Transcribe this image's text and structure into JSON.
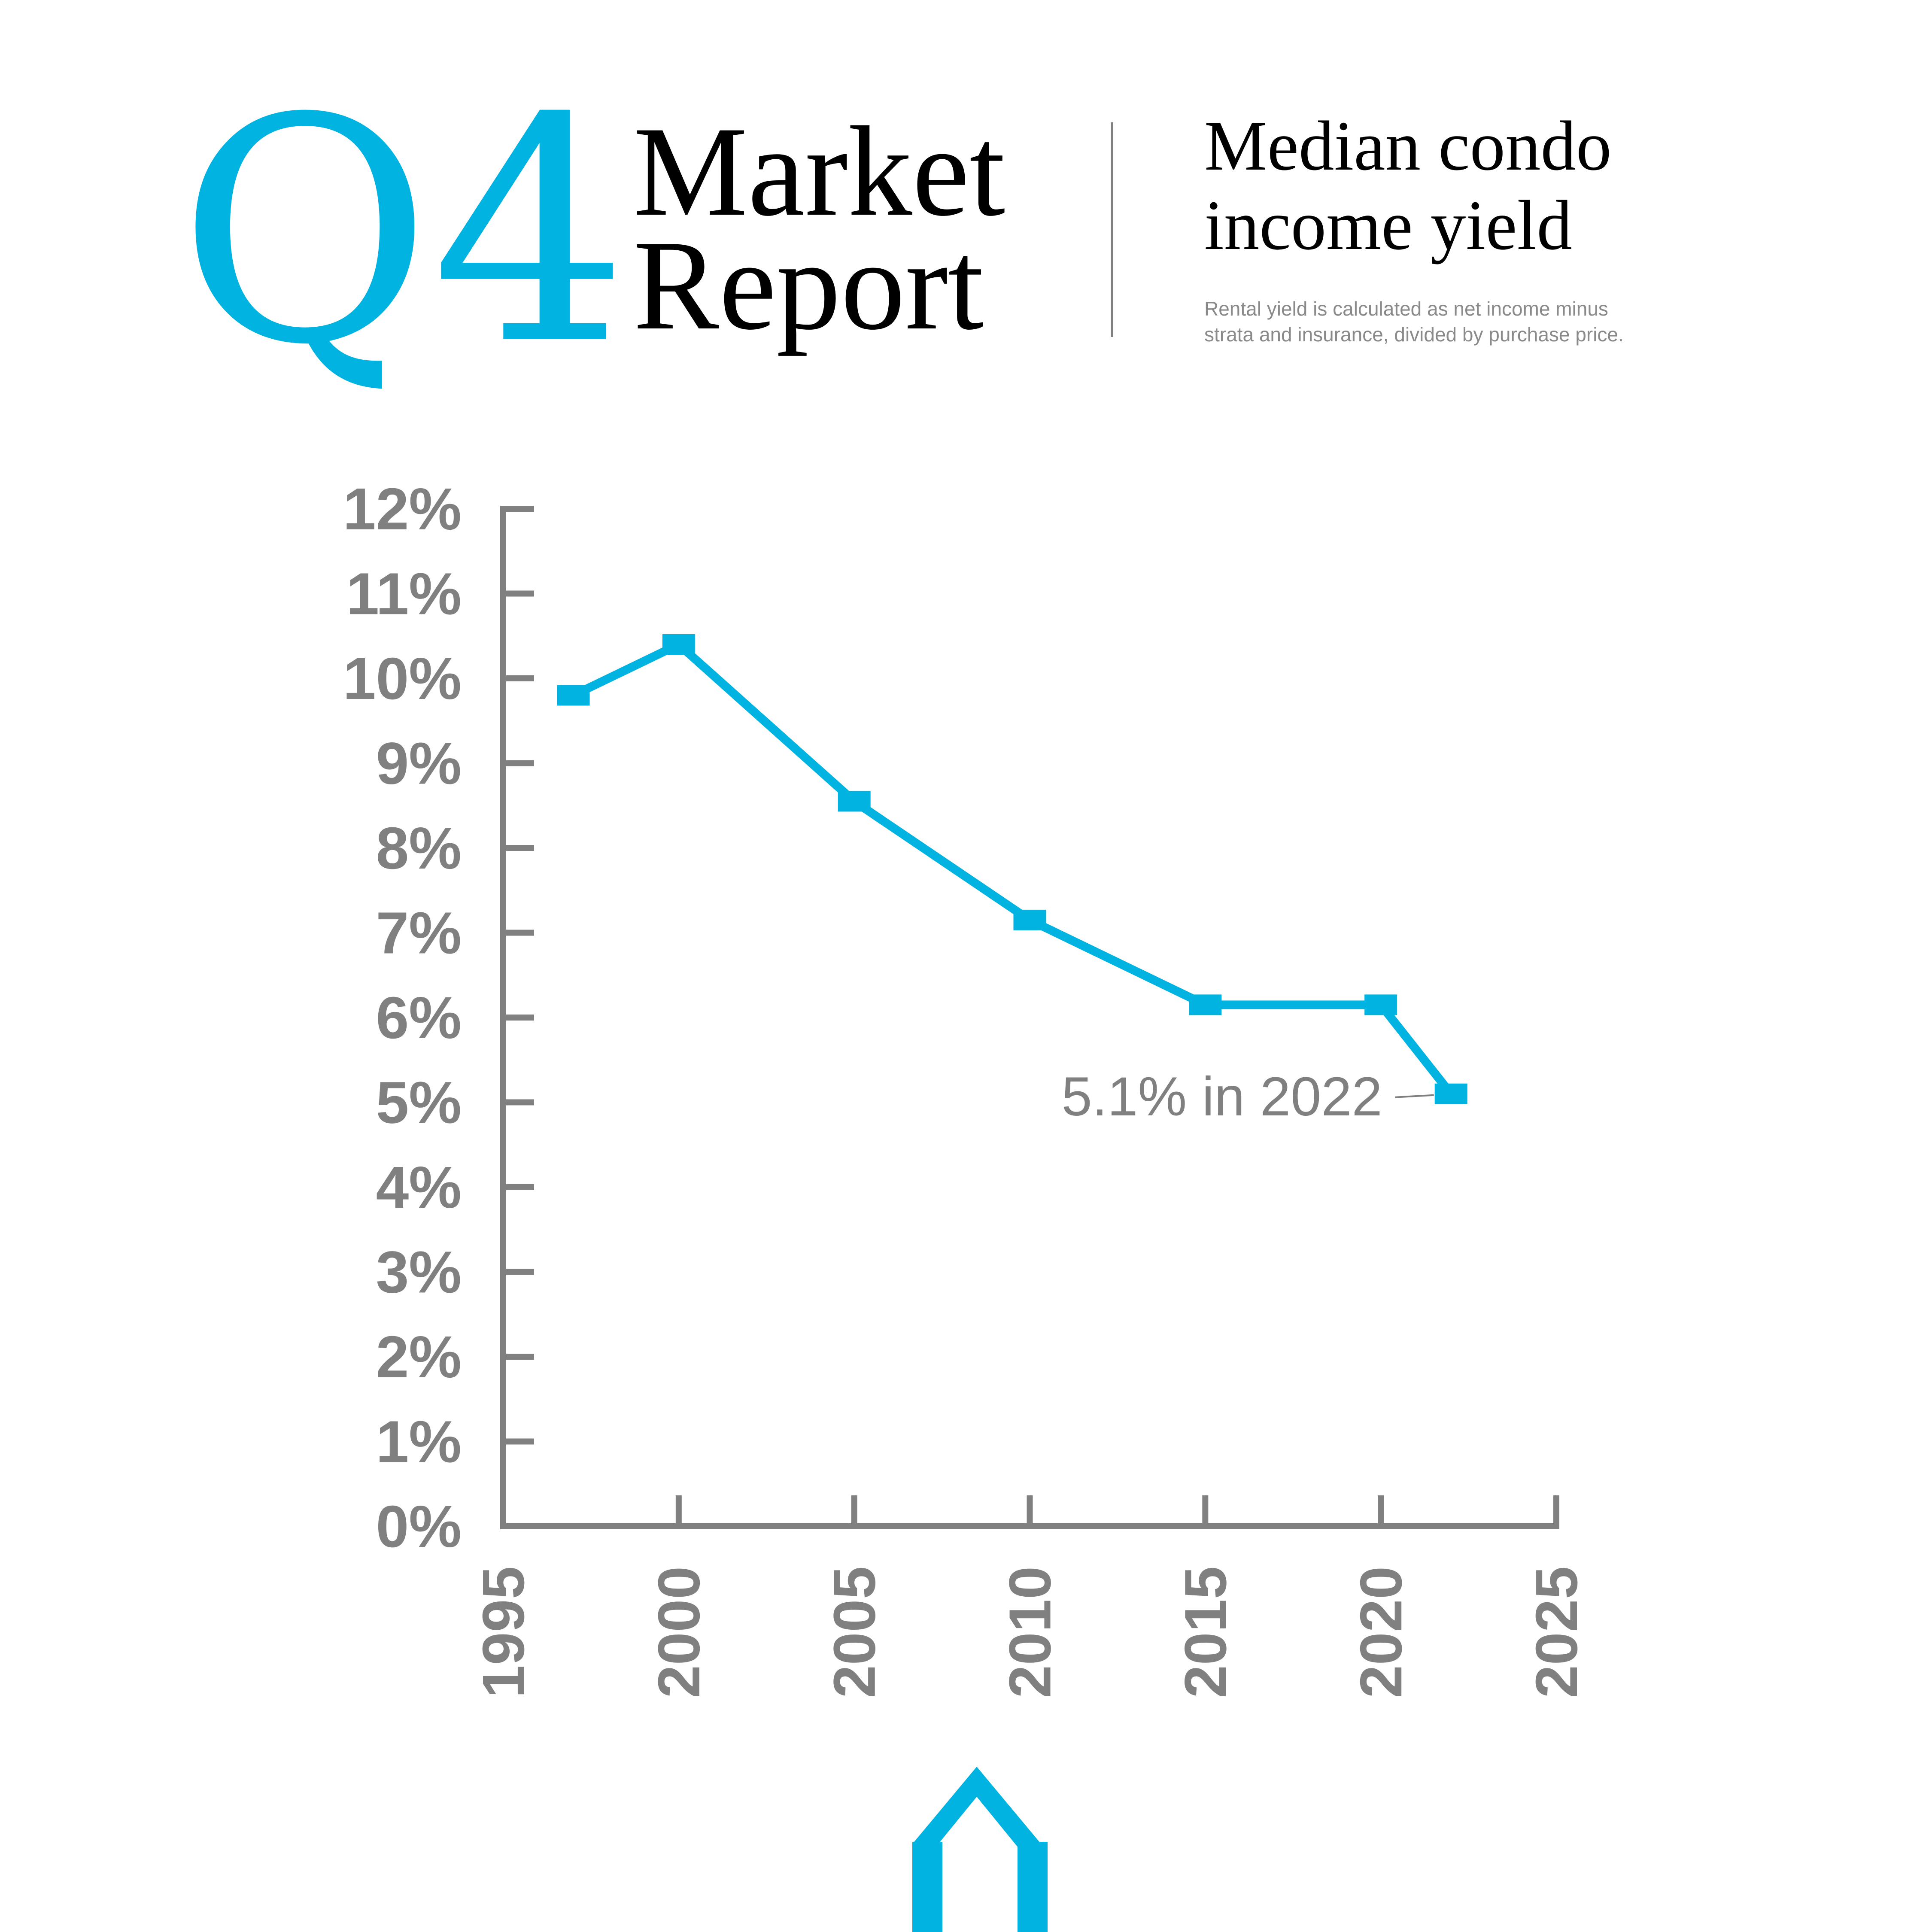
{
  "header": {
    "q_label": "Q4",
    "title_line1": "Market",
    "title_line2": "Report",
    "chart_title_line1": "Median condo",
    "chart_title_line2": "income yield",
    "note_line1": "Rental yield is calculated as net income minus",
    "note_line2": "strata and insurance, divided by purchase price."
  },
  "colors": {
    "accent": "#00b3e0",
    "axis": "#808080",
    "text": "#000000",
    "note": "#8a8a8a"
  },
  "chart_data": {
    "type": "line",
    "title": "Median condo income yield",
    "subtitle": "Rental yield is calculated as net income minus strata and insurance, divided by purchase price.",
    "xlim": [
      1995,
      2025
    ],
    "ylim": [
      0,
      12
    ],
    "x_ticks": [
      1995,
      2000,
      2005,
      2010,
      2015,
      2020,
      2025
    ],
    "y_ticks": [
      0,
      1,
      2,
      3,
      4,
      5,
      6,
      7,
      8,
      9,
      10,
      11,
      12
    ],
    "y_tick_labels": [
      "0%",
      "1%",
      "2%",
      "3%",
      "4%",
      "5%",
      "6%",
      "7%",
      "8%",
      "9%",
      "10%",
      "11%",
      "12%"
    ],
    "x_tick_labels": [
      "1995",
      "2000",
      "2005",
      "2010",
      "2015",
      "2020",
      "2025"
    ],
    "grid": false,
    "legend": "none",
    "series": [
      {
        "x": [
          1997,
          2000,
          2005,
          2010,
          2015,
          2020,
          2022
        ],
        "y": [
          9.8,
          10.4,
          8.55,
          7.15,
          6.15,
          6.15,
          5.1
        ]
      }
    ],
    "annotations": [
      {
        "text": "5.1% in 2022",
        "x": 2022,
        "y": 5.1
      }
    ]
  },
  "logo": {
    "name": "house-brush-logo"
  }
}
